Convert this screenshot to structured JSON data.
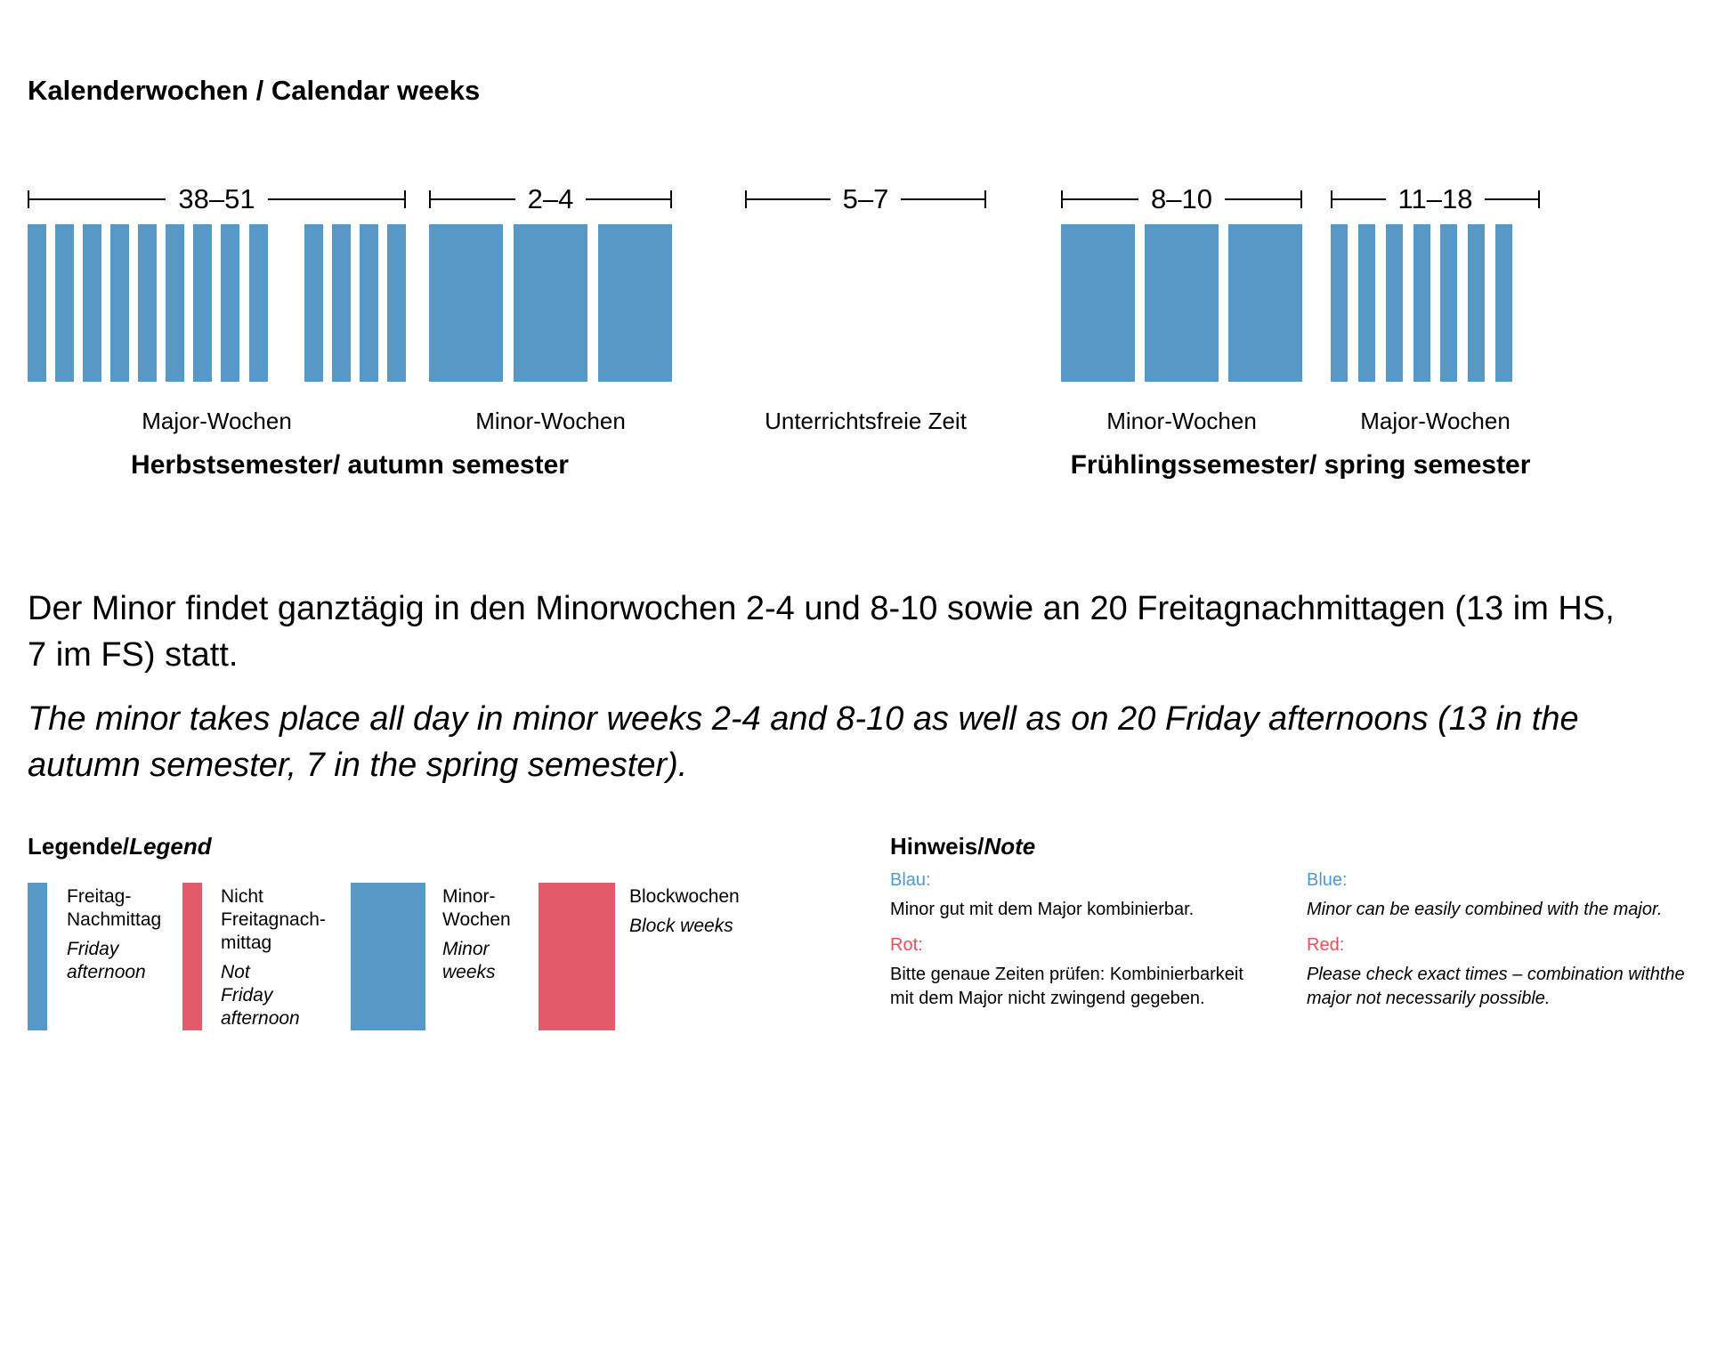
{
  "colors": {
    "bar_blue": "#5898C6",
    "bar_red": "#E25A6B",
    "note_blue": "#4D9AD3",
    "note_red": "#F04B57"
  },
  "title": "Kalenderwochen / Calendar weeks",
  "timeline": {
    "groups": [
      {
        "range_label": "38–51",
        "caption": "Major-Wochen",
        "bar_style": "thin",
        "weeks": [
          1,
          1,
          1,
          1,
          1,
          1,
          1,
          1,
          1,
          0,
          1,
          1,
          1,
          1
        ]
      },
      {
        "range_label": "2–4",
        "caption": "Minor-Wochen",
        "bar_style": "wide",
        "weeks": [
          1,
          1,
          1
        ]
      },
      {
        "range_label": "5–7",
        "caption": "Unterrichtsfreie Zeit",
        "bar_style": "none",
        "weeks": []
      },
      {
        "range_label": "8–10",
        "caption": "Minor-Wochen",
        "bar_style": "wide",
        "weeks": [
          1,
          1,
          1
        ]
      },
      {
        "range_label": "11–18",
        "caption": "Major-Wochen",
        "bar_style": "thin",
        "weeks": [
          1,
          1,
          1,
          1,
          1,
          1,
          1,
          0
        ]
      }
    ],
    "semesters": [
      {
        "label": "Herbstsemester/ autumn semester"
      },
      {
        "label": "Frühlingssemester/ spring semester"
      }
    ]
  },
  "paragraphs": {
    "de_lines": [
      "Der Minor findet ganztägig in den Minorwochen 2-4 und 8-10 sowie an 20 Freitagnachmittagen (13 im HS,",
      "7 im FS) statt."
    ],
    "en_lines": [
      "The minor takes place all day in minor weeks 2-4 and 8-10 as well as on 20 Friday afternoons (13 in the",
      "autumn semester, 7 in the spring semester)."
    ]
  },
  "legend": {
    "title_de": "Legende/",
    "title_en": "Legend",
    "items": [
      {
        "color": "blue",
        "de_lines": [
          "Freitag-",
          "Nachmittag"
        ],
        "en_lines": [
          "Friday",
          "afternoon"
        ]
      },
      {
        "color": "red",
        "de_lines": [
          "Nicht",
          "Freitagnach-",
          "mittag"
        ],
        "en_lines": [
          "Not",
          "Friday",
          "afternoon"
        ]
      },
      {
        "color": "blue",
        "de_lines": [
          "Minor-",
          "Wochen"
        ],
        "en_lines": [
          "Minor",
          "weeks"
        ]
      },
      {
        "color": "red",
        "de_lines": [
          "Blockwochen"
        ],
        "en_lines": [
          "Block weeks"
        ]
      }
    ]
  },
  "note": {
    "title_de": "Hinweis/",
    "title_en": "Note",
    "columns": [
      {
        "lang": "de",
        "italic": false,
        "entries": [
          {
            "heading": "Blau:",
            "color": "blue",
            "lines": [
              "Minor gut mit dem Major kombinierbar."
            ]
          },
          {
            "heading": "Rot:",
            "color": "red",
            "lines": [
              "Bitte genaue Zeiten prüfen: Kombinierbarkeit",
              "mit dem Major nicht zwingend gegeben."
            ]
          }
        ]
      },
      {
        "lang": "en",
        "italic": true,
        "entries": [
          {
            "heading": "Blue:",
            "color": "blue",
            "lines": [
              "Minor can be easily combined with the major."
            ]
          },
          {
            "heading": "Red:",
            "color": "red",
            "lines": [
              "Please check exact times – combination withthe",
              "major not necessarily possible."
            ]
          }
        ]
      }
    ]
  }
}
